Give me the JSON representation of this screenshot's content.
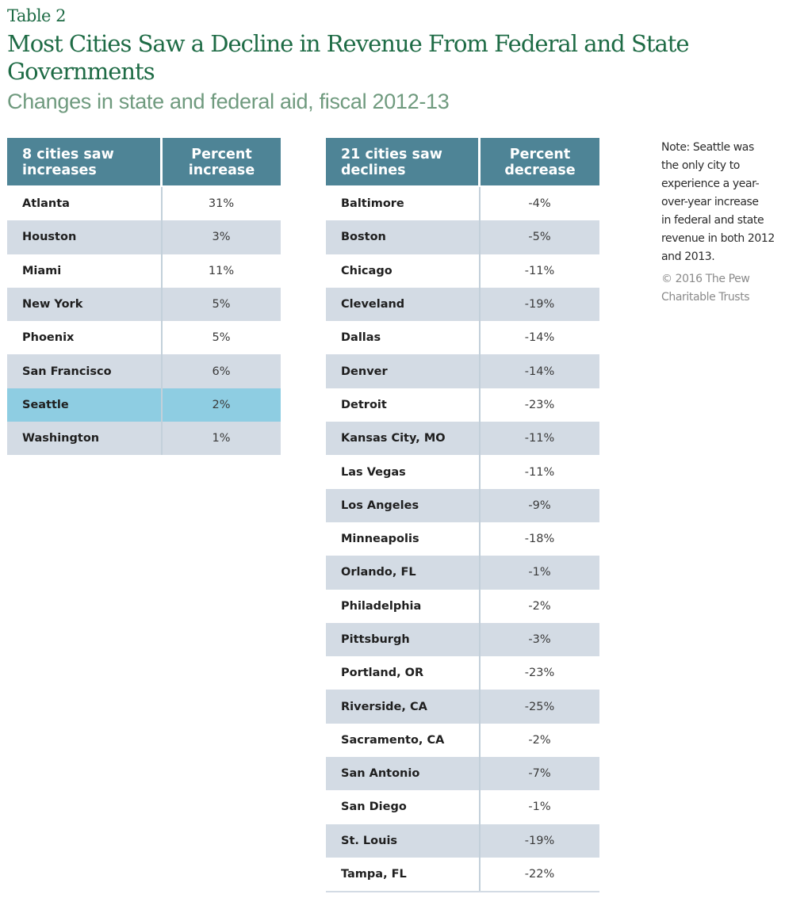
{
  "header": {
    "label": "Table 2",
    "title": "Most Cities Saw a Decline in Revenue From Federal and State Governments",
    "subtitle": "Changes in state and federal aid, fiscal 2012-13"
  },
  "colors": {
    "title": "#1e6b45",
    "subtitle": "#6f9a7e",
    "table_header": "#4e8496",
    "row_alt": "#d3dbe4",
    "row_highlight": "#8ecde2"
  },
  "chart_data": {
    "type": "table",
    "title": "Most Cities Saw a Decline in Revenue From Federal and State Governments",
    "subtitle": "Changes in state and federal aid, fiscal 2012-13",
    "tables": [
      {
        "name": "increases",
        "columns": [
          "8 cities saw increases",
          "Percent increase"
        ],
        "rows": [
          {
            "city": "Atlanta",
            "value": "31%",
            "highlight": false
          },
          {
            "city": "Houston",
            "value": "3%",
            "highlight": false
          },
          {
            "city": "Miami",
            "value": "11%",
            "highlight": false
          },
          {
            "city": "New York",
            "value": "5%",
            "highlight": false
          },
          {
            "city": "Phoenix",
            "value": "5%",
            "highlight": false
          },
          {
            "city": "San Francisco",
            "value": "6%",
            "highlight": false
          },
          {
            "city": "Seattle",
            "value": "2%",
            "highlight": true
          },
          {
            "city": "Washington",
            "value": "1%",
            "highlight": false
          }
        ]
      },
      {
        "name": "declines",
        "columns": [
          "21 cities saw declines",
          "Percent decrease"
        ],
        "rows": [
          {
            "city": "Baltimore",
            "value": "-4%",
            "highlight": false
          },
          {
            "city": "Boston",
            "value": "-5%",
            "highlight": false
          },
          {
            "city": "Chicago",
            "value": "-11%",
            "highlight": false
          },
          {
            "city": "Cleveland",
            "value": "-19%",
            "highlight": false
          },
          {
            "city": "Dallas",
            "value": "-14%",
            "highlight": false
          },
          {
            "city": "Denver",
            "value": "-14%",
            "highlight": false
          },
          {
            "city": "Detroit",
            "value": "-23%",
            "highlight": false
          },
          {
            "city": "Kansas City, MO",
            "value": "-11%",
            "highlight": false
          },
          {
            "city": "Las Vegas",
            "value": "-11%",
            "highlight": false
          },
          {
            "city": "Los Angeles",
            "value": "-9%",
            "highlight": false
          },
          {
            "city": "Minneapolis",
            "value": "-18%",
            "highlight": false
          },
          {
            "city": "Orlando, FL",
            "value": "-1%",
            "highlight": false
          },
          {
            "city": "Philadelphia",
            "value": "-2%",
            "highlight": false
          },
          {
            "city": "Pittsburgh",
            "value": "-3%",
            "highlight": false
          },
          {
            "city": "Portland, OR",
            "value": "-23%",
            "highlight": false
          },
          {
            "city": "Riverside, CA",
            "value": "-25%",
            "highlight": false
          },
          {
            "city": "Sacramento, CA",
            "value": "-2%",
            "highlight": false
          },
          {
            "city": "San Antonio",
            "value": "-7%",
            "highlight": false
          },
          {
            "city": "San Diego",
            "value": "-1%",
            "highlight": false
          },
          {
            "city": "St. Louis",
            "value": "-19%",
            "highlight": false
          },
          {
            "city": "Tampa, FL",
            "value": "-22%",
            "highlight": false
          }
        ]
      }
    ]
  },
  "note": {
    "lines": [
      "Note: Seattle was",
      "the only city to",
      "experience a year-",
      "over-year increase",
      "in federal and state",
      "revenue in both 2012",
      "and 2013."
    ],
    "credit_lines": [
      "© 2016 The Pew",
      "Charitable Trusts"
    ]
  }
}
